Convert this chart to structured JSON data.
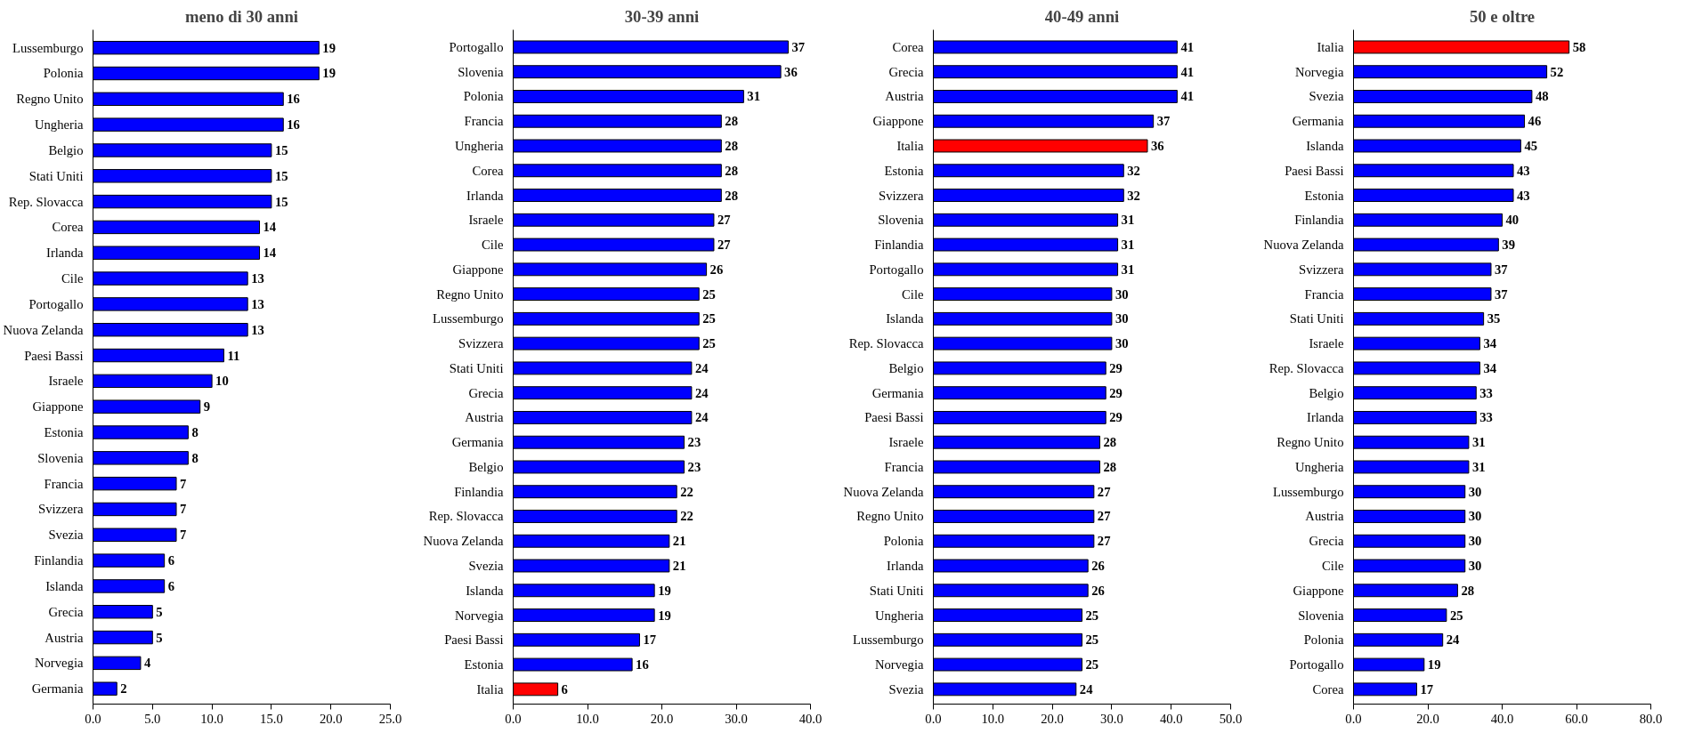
{
  "chart_data": [
    {
      "type": "bar",
      "orientation": "horizontal",
      "title": "meno di 30 anni",
      "data_labels": true,
      "categories": [
        "Lussemburgo",
        "Polonia",
        "Regno Unito",
        "Ungheria",
        "Belgio",
        "Stati Uniti",
        "Rep. Slovacca",
        "Corea",
        "Irlanda",
        "Cile",
        "Portogallo",
        "Nuova Zelanda",
        "Paesi Bassi",
        "Israele",
        "Giappone",
        "Estonia",
        "Slovenia",
        "Francia",
        "Svizzera",
        "Svezia",
        "Finlandia",
        "Islanda",
        "Grecia",
        "Austria",
        "Norvegia",
        "Germania"
      ],
      "values": [
        19,
        19,
        16,
        16,
        15,
        15,
        15,
        14,
        14,
        13,
        13,
        13,
        11,
        10,
        9,
        8,
        8,
        7,
        7,
        7,
        6,
        6,
        5,
        5,
        4,
        2
      ],
      "colors": [
        "#0000ff",
        "#0000ff",
        "#0000ff",
        "#0000ff",
        "#0000ff",
        "#0000ff",
        "#0000ff",
        "#0000ff",
        "#0000ff",
        "#0000ff",
        "#0000ff",
        "#0000ff",
        "#0000ff",
        "#0000ff",
        "#0000ff",
        "#0000ff",
        "#0000ff",
        "#0000ff",
        "#0000ff",
        "#0000ff",
        "#0000ff",
        "#0000ff",
        "#0000ff",
        "#0000ff",
        "#0000ff",
        "#0000ff"
      ],
      "xlim": [
        0,
        25
      ],
      "xticks": [
        {
          "value": 0,
          "label": "0.0"
        },
        {
          "value": 5,
          "label": "5.0"
        },
        {
          "value": 10,
          "label": "10.0"
        },
        {
          "value": 15,
          "label": "15.0"
        },
        {
          "value": 20,
          "label": "20.0"
        },
        {
          "value": 25,
          "label": "25.0"
        }
      ]
    },
    {
      "type": "bar",
      "orientation": "horizontal",
      "title": "30-39 anni",
      "data_labels": true,
      "categories": [
        "Portogallo",
        "Slovenia",
        "Polonia",
        "Francia",
        "Ungheria",
        "Corea",
        "Irlanda",
        "Israele",
        "Cile",
        "Giappone",
        "Regno Unito",
        "Lussemburgo",
        "Svizzera",
        "Stati Uniti",
        "Grecia",
        "Austria",
        "Germania",
        "Belgio",
        "Finlandia",
        "Rep. Slovacca",
        "Nuova Zelanda",
        "Svezia",
        "Islanda",
        "Norvegia",
        "Paesi Bassi",
        "Estonia",
        "Italia"
      ],
      "values": [
        37,
        36,
        31,
        28,
        28,
        28,
        28,
        27,
        27,
        26,
        25,
        25,
        25,
        24,
        24,
        24,
        23,
        23,
        22,
        22,
        21,
        21,
        19,
        19,
        17,
        16,
        6
      ],
      "colors": [
        "#0000ff",
        "#0000ff",
        "#0000ff",
        "#0000ff",
        "#0000ff",
        "#0000ff",
        "#0000ff",
        "#0000ff",
        "#0000ff",
        "#0000ff",
        "#0000ff",
        "#0000ff",
        "#0000ff",
        "#0000ff",
        "#0000ff",
        "#0000ff",
        "#0000ff",
        "#0000ff",
        "#0000ff",
        "#0000ff",
        "#0000ff",
        "#0000ff",
        "#0000ff",
        "#0000ff",
        "#0000ff",
        "#0000ff",
        "#ff0000"
      ],
      "xlim": [
        0,
        40
      ],
      "xticks": [
        {
          "value": 0,
          "label": "0.0"
        },
        {
          "value": 10,
          "label": "10.0"
        },
        {
          "value": 20,
          "label": "20.0"
        },
        {
          "value": 30,
          "label": "30.0"
        },
        {
          "value": 40,
          "label": "40.0"
        }
      ]
    },
    {
      "type": "bar",
      "orientation": "horizontal",
      "title": "40-49 anni",
      "data_labels": true,
      "categories": [
        "Corea",
        "Grecia",
        "Austria",
        "Giappone",
        "Italia",
        "Estonia",
        "Svizzera",
        "Slovenia",
        "Finlandia",
        "Portogallo",
        "Cile",
        "Islanda",
        "Rep. Slovacca",
        "Belgio",
        "Germania",
        "Paesi Bassi",
        "Israele",
        "Francia",
        "Nuova Zelanda",
        "Regno Unito",
        "Polonia",
        "Irlanda",
        "Stati Uniti",
        "Ungheria",
        "Lussemburgo",
        "Norvegia",
        "Svezia"
      ],
      "values": [
        41,
        41,
        41,
        37,
        36,
        32,
        32,
        31,
        31,
        31,
        30,
        30,
        30,
        29,
        29,
        29,
        28,
        28,
        27,
        27,
        27,
        26,
        26,
        25,
        25,
        25,
        24
      ],
      "colors": [
        "#0000ff",
        "#0000ff",
        "#0000ff",
        "#0000ff",
        "#ff0000",
        "#0000ff",
        "#0000ff",
        "#0000ff",
        "#0000ff",
        "#0000ff",
        "#0000ff",
        "#0000ff",
        "#0000ff",
        "#0000ff",
        "#0000ff",
        "#0000ff",
        "#0000ff",
        "#0000ff",
        "#0000ff",
        "#0000ff",
        "#0000ff",
        "#0000ff",
        "#0000ff",
        "#0000ff",
        "#0000ff",
        "#0000ff",
        "#0000ff"
      ],
      "xlim": [
        0,
        50
      ],
      "xticks": [
        {
          "value": 0,
          "label": "0.0"
        },
        {
          "value": 10,
          "label": "10.0"
        },
        {
          "value": 20,
          "label": "20.0"
        },
        {
          "value": 30,
          "label": "30.0"
        },
        {
          "value": 40,
          "label": "40.0"
        },
        {
          "value": 50,
          "label": "50.0"
        }
      ]
    },
    {
      "type": "bar",
      "orientation": "horizontal",
      "title": "50 e oltre",
      "data_labels": true,
      "categories": [
        "Italia",
        "Norvegia",
        "Svezia",
        "Germania",
        "Islanda",
        "Paesi Bassi",
        "Estonia",
        "Finlandia",
        "Nuova Zelanda",
        "Svizzera",
        "Francia",
        "Stati Uniti",
        "Israele",
        "Rep. Slovacca",
        "Belgio",
        "Irlanda",
        "Regno Unito",
        "Ungheria",
        "Lussemburgo",
        "Austria",
        "Grecia",
        "Cile",
        "Giappone",
        "Slovenia",
        "Polonia",
        "Portogallo",
        "Corea"
      ],
      "values": [
        58,
        52,
        48,
        46,
        45,
        43,
        43,
        40,
        39,
        37,
        37,
        35,
        34,
        34,
        33,
        33,
        31,
        31,
        30,
        30,
        30,
        30,
        28,
        25,
        24,
        19,
        17
      ],
      "colors": [
        "#ff0000",
        "#0000ff",
        "#0000ff",
        "#0000ff",
        "#0000ff",
        "#0000ff",
        "#0000ff",
        "#0000ff",
        "#0000ff",
        "#0000ff",
        "#0000ff",
        "#0000ff",
        "#0000ff",
        "#0000ff",
        "#0000ff",
        "#0000ff",
        "#0000ff",
        "#0000ff",
        "#0000ff",
        "#0000ff",
        "#0000ff",
        "#0000ff",
        "#0000ff",
        "#0000ff",
        "#0000ff",
        "#0000ff",
        "#0000ff"
      ],
      "xlim": [
        0,
        80
      ],
      "xticks": [
        {
          "value": 0,
          "label": "0.0"
        },
        {
          "value": 20,
          "label": "20.0"
        },
        {
          "value": 40,
          "label": "40.0"
        },
        {
          "value": 60,
          "label": "60.0"
        },
        {
          "value": 80,
          "label": "80.0"
        }
      ]
    }
  ]
}
